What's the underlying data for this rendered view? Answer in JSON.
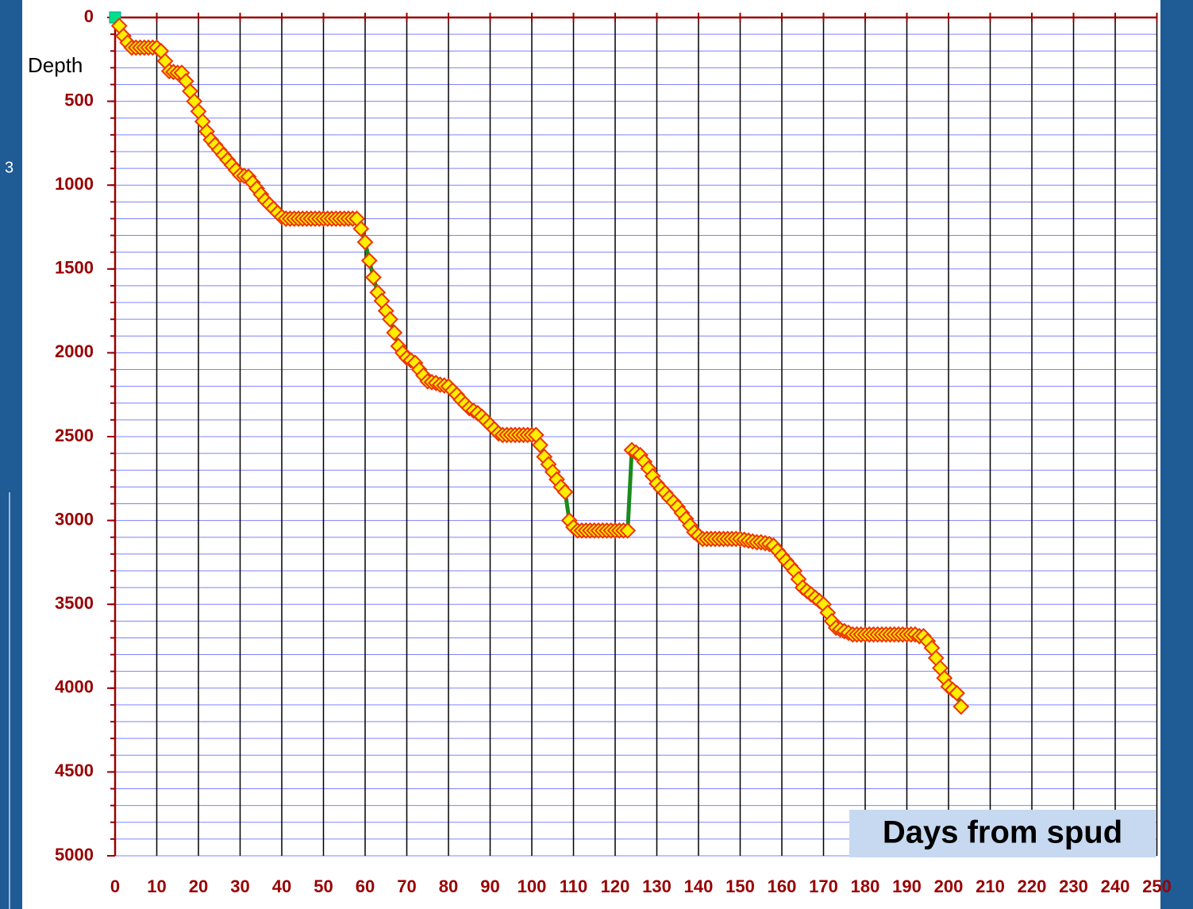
{
  "slide_number": "3",
  "chart_data": {
    "type": "line",
    "y_label": "Depth",
    "x_label": "Days from spud",
    "xlim": [
      0,
      250
    ],
    "xticks": [
      0,
      10,
      20,
      30,
      40,
      50,
      60,
      70,
      80,
      90,
      100,
      110,
      120,
      130,
      140,
      150,
      160,
      170,
      180,
      190,
      200,
      210,
      220,
      230,
      240,
      250
    ],
    "ylim": [
      0,
      5000
    ],
    "y_inverted": true,
    "yticks": [
      0,
      500,
      1000,
      1500,
      2000,
      2500,
      3000,
      3500,
      4000,
      4500,
      5000
    ],
    "y_minor_ticks": [
      0,
      100,
      200,
      300,
      400,
      500,
      600,
      700,
      800,
      900,
      1000,
      1100,
      1200,
      1300,
      1400,
      1500,
      1600,
      1700,
      1800,
      1900,
      2000,
      2100,
      2200,
      2300,
      2400,
      2500,
      2600,
      2700,
      2800,
      2900,
      3000,
      3100,
      3200,
      3300,
      3400,
      3500,
      3600,
      3700,
      3800,
      3900,
      4000,
      4100,
      4200,
      4300,
      4400,
      4500,
      4600,
      4700,
      4800,
      4900,
      5000
    ],
    "grid": true,
    "grid_color": "#8080ff",
    "x_grid_color": "#000000",
    "axis_color": "#990000",
    "start_marker_color": "#00e08a",
    "x": [
      0,
      1,
      2,
      3,
      4,
      5,
      6,
      7,
      8,
      9,
      10,
      11,
      12,
      13,
      14,
      15,
      16,
      17,
      18,
      19,
      20,
      21,
      22,
      23,
      24,
      25,
      26,
      27,
      28,
      29,
      30,
      31,
      32,
      33,
      34,
      35,
      36,
      37,
      38,
      39,
      40,
      41,
      42,
      43,
      44,
      45,
      46,
      47,
      48,
      49,
      50,
      51,
      52,
      53,
      54,
      55,
      56,
      57,
      58,
      59,
      60,
      61,
      62,
      63,
      64,
      65,
      66,
      67,
      68,
      69,
      70,
      71,
      72,
      73,
      74,
      75,
      76,
      77,
      78,
      79,
      80,
      81,
      82,
      83,
      84,
      85,
      86,
      87,
      88,
      89,
      90,
      91,
      92,
      93,
      94,
      95,
      96,
      97,
      98,
      99,
      100,
      101,
      102,
      103,
      104,
      105,
      106,
      107,
      108,
      109,
      110,
      111,
      112,
      113,
      114,
      115,
      116,
      117,
      118,
      119,
      120,
      121,
      122,
      123,
      124,
      125,
      126,
      127,
      128,
      129,
      130,
      131,
      132,
      133,
      134,
      135,
      136,
      137,
      138,
      139,
      140,
      141,
      142,
      143,
      144,
      145,
      146,
      147,
      148,
      149,
      150,
      151,
      152,
      153,
      154,
      155,
      156,
      157,
      158,
      159,
      160,
      161,
      162,
      163,
      164,
      165,
      166,
      167,
      168,
      169,
      170,
      171,
      172,
      173,
      174,
      175,
      176,
      177,
      178,
      179,
      180,
      181,
      182,
      183,
      184,
      185,
      186,
      187,
      188,
      189,
      190,
      191,
      192,
      193,
      194,
      195,
      196,
      197,
      198,
      199,
      200,
      201,
      202,
      203
    ],
    "series": [
      {
        "color": "#1a8a1a",
        "marker_fill": "#ffee00",
        "marker_stroke": "#ee3300",
        "values": [
          0,
          50,
          110,
          150,
          180,
          180,
          180,
          180,
          180,
          180,
          180,
          200,
          260,
          320,
          325,
          330,
          330,
          380,
          440,
          500,
          560,
          620,
          680,
          730,
          760,
          790,
          820,
          850,
          880,
          910,
          940,
          945,
          950,
          985,
          1020,
          1055,
          1090,
          1115,
          1140,
          1165,
          1190,
          1200,
          1200,
          1200,
          1200,
          1200,
          1200,
          1200,
          1200,
          1200,
          1200,
          1200,
          1200,
          1200,
          1200,
          1200,
          1200,
          1200,
          1200,
          1260,
          1340,
          1450,
          1550,
          1640,
          1690,
          1750,
          1800,
          1880,
          1960,
          2000,
          2030,
          2045,
          2060,
          2100,
          2135,
          2170,
          2175,
          2180,
          2190,
          2195,
          2200,
          2225,
          2250,
          2280,
          2305,
          2330,
          2345,
          2360,
          2380,
          2405,
          2430,
          2455,
          2480,
          2490,
          2490,
          2490,
          2490,
          2490,
          2490,
          2490,
          2490,
          2490,
          2550,
          2620,
          2665,
          2710,
          2755,
          2800,
          2830,
          3000,
          3040,
          3060,
          3060,
          3060,
          3060,
          3060,
          3060,
          3060,
          3060,
          3060,
          3060,
          3060,
          3060,
          3060,
          2580,
          2595,
          2610,
          2650,
          2690,
          2735,
          2780,
          2810,
          2835,
          2865,
          2890,
          2920,
          2955,
          2990,
          3030,
          3070,
          3090,
          3110,
          3110,
          3110,
          3110,
          3110,
          3110,
          3110,
          3110,
          3110,
          3110,
          3115,
          3120,
          3125,
          3130,
          3130,
          3135,
          3140,
          3150,
          3180,
          3210,
          3240,
          3270,
          3300,
          3350,
          3400,
          3420,
          3440,
          3460,
          3480,
          3500,
          3550,
          3600,
          3640,
          3650,
          3660,
          3670,
          3680,
          3680,
          3680,
          3680,
          3680,
          3680,
          3680,
          3680,
          3680,
          3680,
          3680,
          3680,
          3680,
          3680,
          3680,
          3680,
          3690,
          3690,
          3720,
          3760,
          3820,
          3880,
          3940,
          3990,
          4010,
          4030,
          4110
        ]
      }
    ]
  }
}
